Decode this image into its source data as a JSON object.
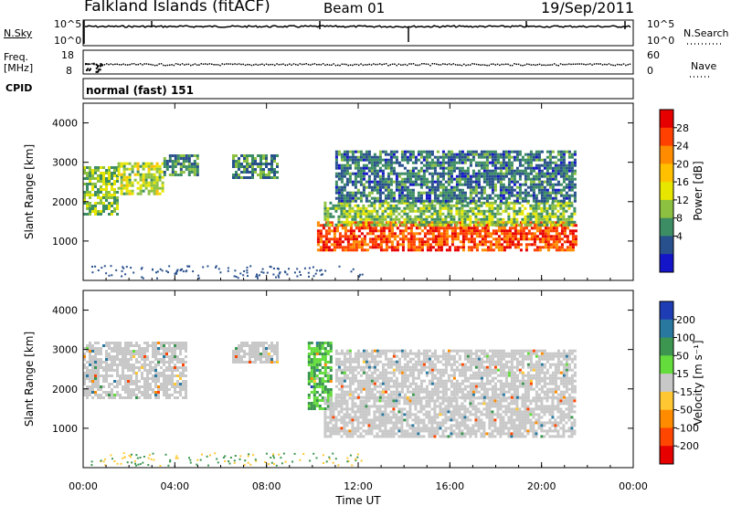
{
  "header": {
    "station": "Falkland Islands (fitACF)",
    "beam": "Beam 01",
    "date": "19/Sep/2011"
  },
  "panels": {
    "nsky": {
      "label": "N.Sky",
      "right_label": "N.Search",
      "left_ticks": [
        "10^5",
        "10^0"
      ],
      "right_ticks": [
        "10^5",
        "10^0"
      ]
    },
    "freq": {
      "label_line1": "Freq.",
      "label_line2": "[MHz]",
      "left_ticks": [
        "18",
        "8"
      ],
      "right_ticks": [
        "60",
        "0"
      ],
      "right_label": "Nave"
    },
    "cpid": {
      "label": "CPID",
      "text": "normal (fast) 151"
    }
  },
  "power_colorbar": {
    "title": "Power [dB]",
    "ticks": [
      "28",
      "24",
      "20",
      "16",
      "12",
      "8",
      "4"
    ],
    "colors": [
      "#e60000",
      "#ff4000",
      "#ff8c00",
      "#ffc000",
      "#e6e600",
      "#8cc040",
      "#3c8c64",
      "#28508c",
      "#1414c8"
    ]
  },
  "velocity_colorbar": {
    "title": "Velocity [m s⁻¹]",
    "ticks": [
      "200",
      "100",
      "50",
      "15",
      "-15",
      "-50",
      "-100",
      "-200"
    ],
    "colors": [
      "#1e3cb4",
      "#2878a0",
      "#3c9650",
      "#64dc3c",
      "#c8c8c8",
      "#ffc832",
      "#ff8c00",
      "#ff4600",
      "#e60000"
    ]
  },
  "chart_data": [
    {
      "type": "heatmap",
      "name": "power",
      "ylabel": "Slant Range [km]",
      "xlabel": "",
      "x_ticks": [
        0,
        4,
        8,
        12,
        16,
        20,
        24
      ],
      "y_ticks": [
        1000,
        2000,
        3000,
        4000
      ],
      "xlim": [
        0,
        24
      ],
      "ylim": [
        0,
        4500
      ],
      "regions": [
        {
          "x0": 0.0,
          "x1": 1.5,
          "y0": 1700,
          "y1": 2900,
          "value": 12
        },
        {
          "x0": 1.5,
          "x1": 3.5,
          "y0": 2200,
          "y1": 3000,
          "value": 14
        },
        {
          "x0": 3.5,
          "x1": 5.0,
          "y0": 2700,
          "y1": 3200,
          "value": 8
        },
        {
          "x0": 6.5,
          "x1": 8.5,
          "y0": 2600,
          "y1": 3200,
          "value": 8
        },
        {
          "x0": 10.2,
          "x1": 21.5,
          "y0": 800,
          "y1": 1500,
          "value": 28
        },
        {
          "x0": 10.5,
          "x1": 21.5,
          "y0": 1400,
          "y1": 2000,
          "value": 12
        },
        {
          "x0": 11.0,
          "x1": 21.5,
          "y0": 2000,
          "y1": 3300,
          "value": 6
        }
      ]
    },
    {
      "type": "heatmap",
      "name": "velocity",
      "ylabel": "Slant Range [km]",
      "xlabel": "Time UT",
      "x_tick_labels": [
        "00:00",
        "04:00",
        "08:00",
        "12:00",
        "16:00",
        "20:00",
        "00:00"
      ],
      "x_ticks": [
        0,
        4,
        8,
        12,
        16,
        20,
        24
      ],
      "y_ticks": [
        1000,
        2000,
        3000,
        4000
      ],
      "xlim": [
        0,
        24
      ],
      "ylim": [
        0,
        4500
      ],
      "regions": [
        {
          "x0": 0.0,
          "x1": 4.5,
          "y0": 1800,
          "y1": 3200,
          "value": 0
        },
        {
          "x0": 6.5,
          "x1": 8.5,
          "y0": 2700,
          "y1": 3200,
          "value": 0
        },
        {
          "x0": 9.8,
          "x1": 10.8,
          "y0": 1500,
          "y1": 3200,
          "value": 30
        },
        {
          "x0": 10.5,
          "x1": 21.5,
          "y0": 800,
          "y1": 1800,
          "value": 0
        },
        {
          "x0": 11.0,
          "x1": 21.5,
          "y0": 1800,
          "y1": 3000,
          "value": 0
        }
      ]
    }
  ]
}
